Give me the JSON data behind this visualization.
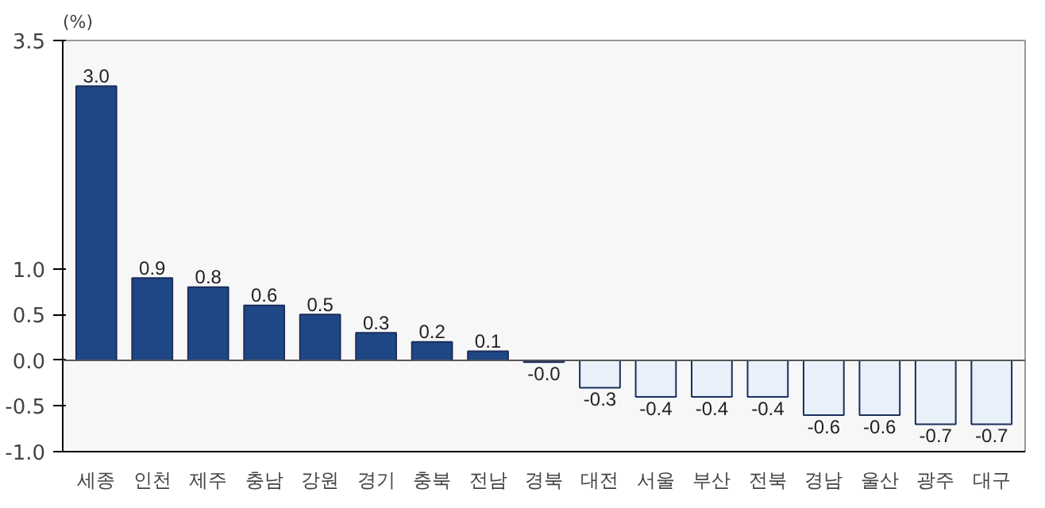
{
  "chart_data": {
    "type": "bar",
    "ylabel": "(%)",
    "categories": [
      "세종",
      "인천",
      "제주",
      "충남",
      "강원",
      "경기",
      "충북",
      "전남",
      "경북",
      "대전",
      "서울",
      "부산",
      "전북",
      "경남",
      "울산",
      "광주",
      "대구"
    ],
    "values": [
      3.0,
      0.9,
      0.8,
      0.6,
      0.5,
      0.3,
      0.2,
      0.1,
      -0.02,
      -0.3,
      -0.4,
      -0.4,
      -0.4,
      -0.6,
      -0.6,
      -0.7,
      -0.7
    ],
    "value_labels": [
      "3.0",
      "0.9",
      "0.8",
      "0.6",
      "0.5",
      "0.3",
      "0.2",
      "0.1",
      "-0.0",
      "-0.3",
      "-0.4",
      "-0.4",
      "-0.4",
      "-0.6",
      "-0.6",
      "-0.7",
      "-0.7"
    ],
    "colors": [
      "#1f4685",
      "#1f4685",
      "#1f4685",
      "#1f4685",
      "#1f4685",
      "#1f4685",
      "#1f4685",
      "#1f4685",
      "#1f4685",
      "#e8f0fa",
      "#e8f0fa",
      "#e8f0fa",
      "#e8f0fa",
      "#e8f0fa",
      "#e8f0fa",
      "#e8f0fa",
      "#e8f0fa"
    ],
    "ylim": [
      -1.0,
      3.5
    ],
    "yticks": [
      {
        "value": -1.0,
        "label": "-1.0"
      },
      -0.5,
      {
        "value": 0.0,
        "label": "0.0"
      },
      0.5,
      {
        "value": 1.0,
        "label": "1.0"
      },
      3.5
    ],
    "ref_lines": [
      {
        "axis": "y",
        "value": 0,
        "color": "#555555"
      }
    ],
    "grid": false
  }
}
